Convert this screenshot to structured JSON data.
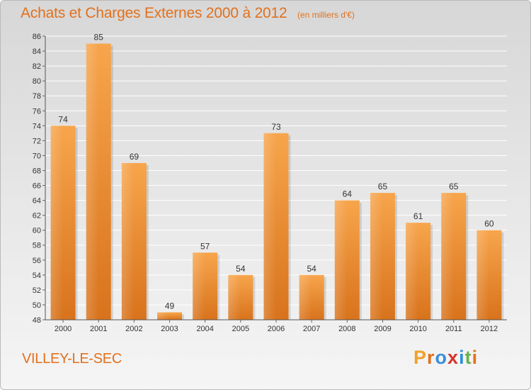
{
  "chart_data": {
    "type": "bar",
    "title": "Achats et Charges Externes 2000 à 2012",
    "subtitle": "(en milliers d'€)",
    "categories": [
      "2000",
      "2001",
      "2002",
      "2003",
      "2004",
      "2005",
      "2006",
      "2007",
      "2008",
      "2009",
      "2010",
      "2011",
      "2012"
    ],
    "values": [
      74,
      85,
      69,
      49,
      57,
      54,
      73,
      54,
      64,
      65,
      61,
      65,
      60
    ],
    "xlabel": "",
    "ylabel": "",
    "ylim": [
      48,
      86
    ],
    "yticks": [
      48,
      50,
      52,
      54,
      56,
      58,
      60,
      62,
      64,
      66,
      68,
      70,
      72,
      74,
      76,
      78,
      80,
      82,
      84,
      86
    ],
    "grid": true,
    "legend": "none",
    "bar_color": "#f29a3c"
  },
  "footer": {
    "commune": "VILLEY-LE-SEC",
    "logo_text": "Proxiti",
    "logo_colors": [
      "#f0a12a",
      "#e2711d",
      "#3a8ed8",
      "#d8342c",
      "#2d8fd8",
      "#6ab04c",
      "#e2711d"
    ]
  }
}
